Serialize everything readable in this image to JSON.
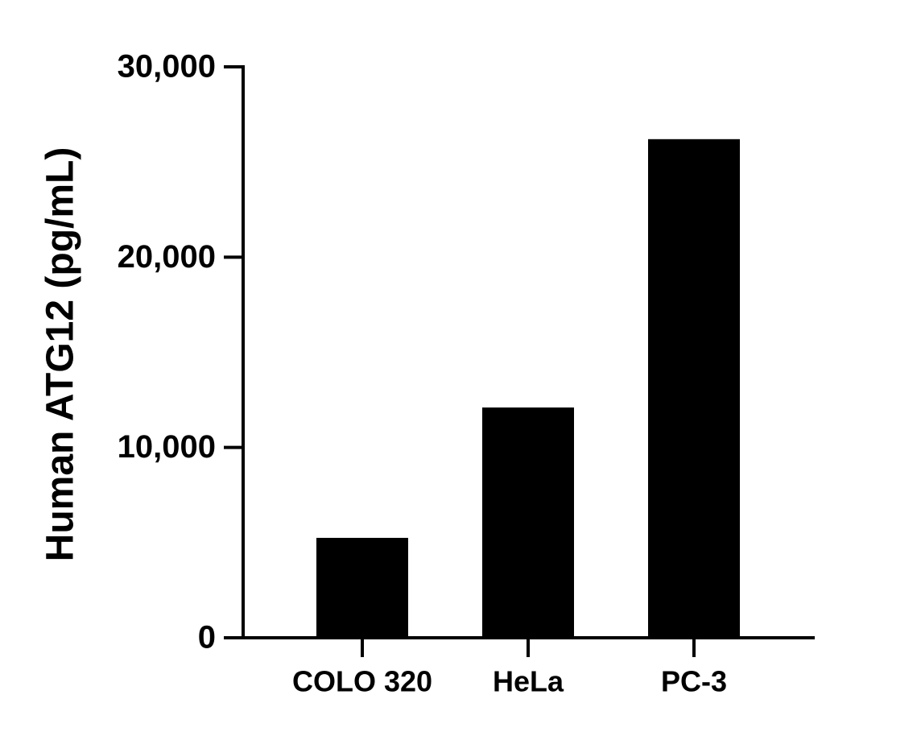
{
  "chart_data": {
    "type": "bar",
    "y_label": "Human ATG12 (pg/mL)",
    "categories": [
      "COLO 320",
      "HeLa",
      "PC-3"
    ],
    "values": [
      5250,
      12100,
      26200
    ],
    "color": "#000000",
    "ylim": [
      0,
      30000
    ],
    "yticks": [
      0,
      {
        "value": 10000,
        "label": "10,000"
      },
      {
        "value": 20000,
        "label": "20,000"
      },
      {
        "value": 30000,
        "label": "30,000"
      }
    ],
    "grid": false
  }
}
